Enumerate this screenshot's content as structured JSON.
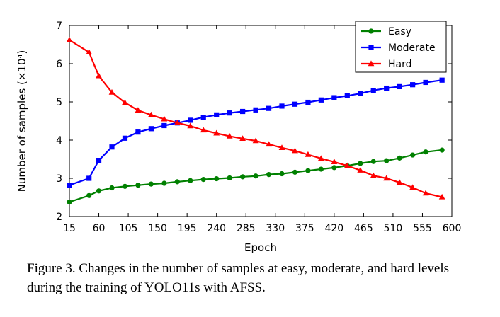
{
  "chart_data": {
    "type": "line",
    "title": "",
    "xlabel": "Epoch",
    "ylabel": "Number of samples (×10⁴)",
    "xlim": [
      15,
      600
    ],
    "ylim": [
      2,
      7
    ],
    "xticks": [
      15,
      60,
      105,
      150,
      195,
      240,
      285,
      330,
      375,
      420,
      465,
      510,
      555,
      600
    ],
    "yticks": [
      2,
      3,
      4,
      5,
      6,
      7
    ],
    "x": [
      15,
      45,
      60,
      80,
      100,
      120,
      140,
      160,
      180,
      200,
      220,
      240,
      260,
      280,
      300,
      320,
      340,
      360,
      380,
      400,
      420,
      440,
      460,
      480,
      500,
      520,
      540,
      560,
      585
    ],
    "series": [
      {
        "name": "Easy",
        "color": "#008000",
        "marker": "circle",
        "values": [
          2.38,
          2.55,
          2.67,
          2.75,
          2.79,
          2.82,
          2.85,
          2.87,
          2.91,
          2.94,
          2.97,
          2.99,
          3.01,
          3.04,
          3.06,
          3.1,
          3.12,
          3.16,
          3.2,
          3.24,
          3.28,
          3.33,
          3.39,
          3.44,
          3.46,
          3.53,
          3.61,
          3.69,
          3.74
        ]
      },
      {
        "name": "Moderate",
        "color": "#0000ff",
        "marker": "square",
        "values": [
          2.82,
          3.0,
          3.47,
          3.82,
          4.05,
          4.21,
          4.3,
          4.38,
          4.45,
          4.52,
          4.6,
          4.66,
          4.71,
          4.75,
          4.79,
          4.83,
          4.89,
          4.94,
          4.99,
          5.05,
          5.11,
          5.16,
          5.22,
          5.3,
          5.36,
          5.4,
          5.45,
          5.51,
          5.57
        ]
      },
      {
        "name": "Hard",
        "color": "#ff0000",
        "marker": "triangle",
        "values": [
          6.62,
          6.3,
          5.68,
          5.25,
          4.98,
          4.78,
          4.66,
          4.55,
          4.45,
          4.37,
          4.26,
          4.18,
          4.1,
          4.04,
          3.98,
          3.89,
          3.8,
          3.72,
          3.62,
          3.52,
          3.43,
          3.33,
          3.21,
          3.07,
          3.0,
          2.89,
          2.76,
          2.61,
          2.51
        ]
      }
    ],
    "legend": "top-right",
    "grid": false
  },
  "caption": {
    "text": "Figure 3.  Changes in the number of samples at easy, moderate, and hard levels during the training of YOLO11s with AFSS."
  }
}
